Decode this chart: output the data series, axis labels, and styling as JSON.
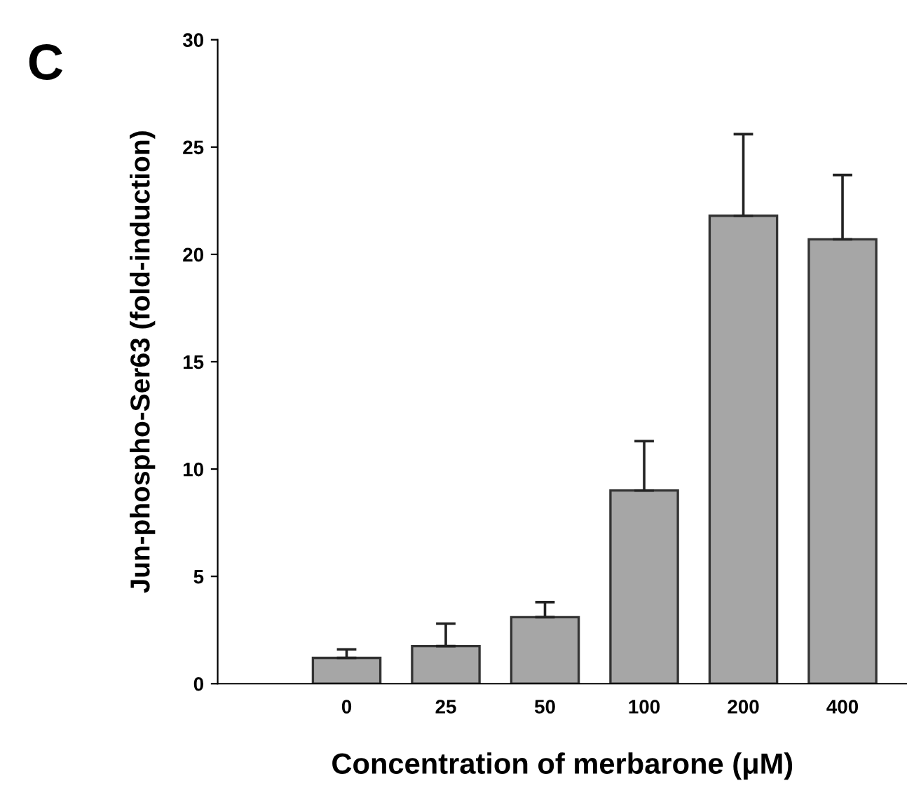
{
  "chart_data": {
    "type": "bar",
    "xlabel": "Concentration of merbarone (μM)",
    "ylabel": "Jun-phospho-Ser63 (fold-induction)",
    "annotations": [
      "C"
    ],
    "categories": [
      "0",
      "25",
      "50",
      "100",
      "200",
      "400"
    ],
    "values": [
      1.2,
      1.75,
      3.1,
      9.0,
      21.8,
      20.7
    ],
    "errors": [
      [
        1.2,
        1.6
      ],
      [
        1.75,
        2.8
      ],
      [
        3.1,
        3.8
      ],
      [
        9.0,
        11.3
      ],
      [
        21.8,
        25.6
      ],
      [
        20.7,
        23.7
      ]
    ],
    "color": "#a6a6a6",
    "ylim": [
      0,
      30
    ],
    "yticks": [
      0,
      5,
      10,
      15,
      20,
      25,
      30
    ],
    "grid": false
  }
}
